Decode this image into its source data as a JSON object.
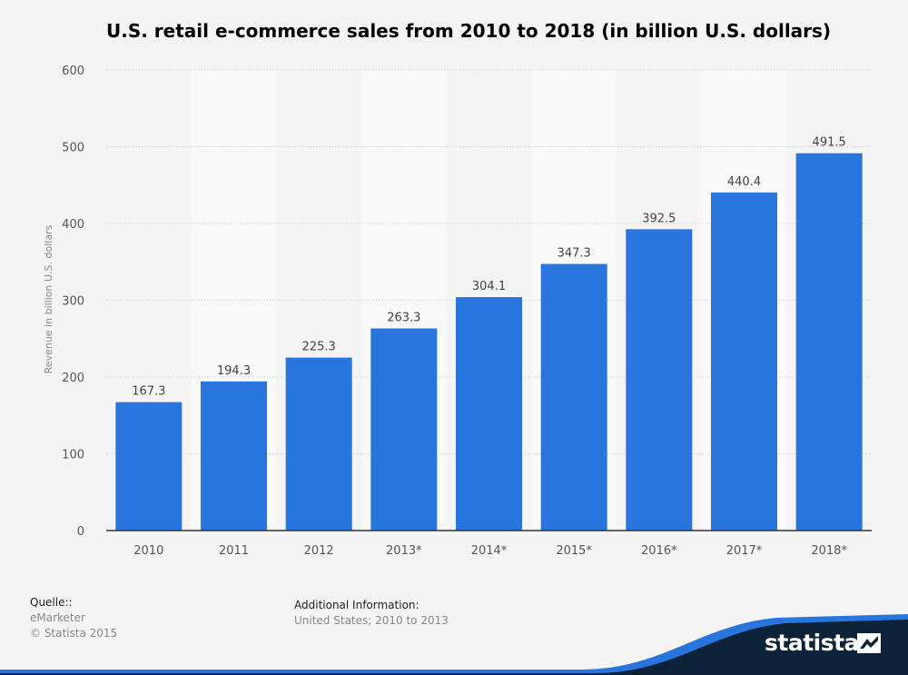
{
  "chart_data": {
    "type": "bar",
    "title": "U.S. retail e-commerce sales from 2010 to 2018 (in billion U.S. dollars)",
    "xlabel": "",
    "ylabel": "Revenue in billion U.S. dollars",
    "categories": [
      "2010",
      "2011",
      "2012",
      "2013*",
      "2014*",
      "2015*",
      "2016*",
      "2017*",
      "2018*"
    ],
    "values": [
      167.3,
      194.3,
      225.3,
      263.3,
      304.1,
      347.3,
      392.5,
      440.4,
      491.5
    ],
    "data_labels": [
      "167.3",
      "194.3",
      "225.3",
      "263.3",
      "304.1",
      "347.3",
      "392.5",
      "440.4",
      "491.5"
    ],
    "ylim": [
      0,
      600
    ],
    "yticks": [
      "0",
      "100",
      "200",
      "300",
      "400",
      "500",
      "600"
    ],
    "grid": true,
    "legend": "none",
    "colors": {
      "bar": "#2876dd",
      "band": "#f9f9f9",
      "background": "#f4f4f4",
      "grid": "#cccccc"
    }
  },
  "footer": {
    "source_heading": "Quelle::",
    "source_lines": [
      "eMarketer",
      "© Statista 2015"
    ],
    "info_heading": "Additional Information:",
    "info_text": "United States; 2010 to 2013"
  },
  "brand": {
    "name": "statista",
    "icon": "statista-logo-icon",
    "colors": {
      "wave_dark": "#0c2238",
      "wave_accent": "#2876dd"
    }
  }
}
